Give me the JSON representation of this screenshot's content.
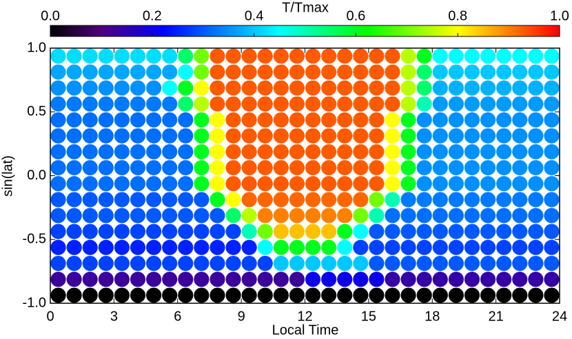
{
  "chart_data": {
    "type": "disk-grid",
    "colorbar_title": "T/Tmax",
    "xlabel": "Local Time",
    "ylabel": "sin(lat)",
    "xlim": [
      0,
      24
    ],
    "ylim": [
      -1,
      1
    ],
    "xticks": [
      0,
      3,
      6,
      9,
      12,
      15,
      18,
      21,
      24
    ],
    "yticks": [
      {
        "value": 1,
        "label": "1.0"
      },
      0.5,
      {
        "value": 0,
        "label": "0.0"
      },
      -0.5,
      {
        "value": -1,
        "label": "-1.0"
      }
    ],
    "clim": [
      0,
      1
    ],
    "cticks": [
      {
        "value": 0,
        "label": "0.0"
      },
      0.2,
      0.4,
      0.6,
      0.8,
      {
        "value": 1,
        "label": "1.0"
      }
    ],
    "colormap": [
      [
        0,
        "#000000"
      ],
      [
        0.1,
        "#50007a"
      ],
      [
        0.22,
        "#0000ff"
      ],
      [
        0.45,
        "#00ffff"
      ],
      [
        0.62,
        "#00ff00"
      ],
      [
        0.8,
        "#ffff00"
      ],
      [
        0.9,
        "#ff8000"
      ],
      [
        1,
        "#ff0000"
      ]
    ],
    "x": [
      0.375,
      1.125,
      1.875,
      2.625,
      3.375,
      4.125,
      4.875,
      5.625,
      6.375,
      7.125,
      7.875,
      8.625,
      9.375,
      10.125,
      10.875,
      11.625,
      12.375,
      13.125,
      13.875,
      14.625,
      15.375,
      16.125,
      16.875,
      17.625,
      18.375,
      19.125,
      19.875,
      20.625,
      21.375,
      22.125,
      22.875,
      23.625
    ],
    "y": [
      0.9375,
      0.8125,
      0.6875,
      0.5625,
      0.4375,
      0.3125,
      0.1875,
      0.0625,
      -0.0625,
      -0.1875,
      -0.3125,
      -0.4375,
      -0.5625,
      -0.6875,
      -0.8125,
      -0.9375
    ],
    "values": [
      [
        0.42,
        0.42,
        0.42,
        0.42,
        0.42,
        0.42,
        0.42,
        0.42,
        0.55,
        0.7,
        0.93,
        0.93,
        0.93,
        0.93,
        0.93,
        0.93,
        0.93,
        0.93,
        0.93,
        0.93,
        0.93,
        0.93,
        0.75,
        0.6,
        0.45,
        0.45,
        0.45,
        0.45,
        0.45,
        0.45,
        0.45,
        0.45
      ],
      [
        0.37,
        0.37,
        0.37,
        0.37,
        0.37,
        0.37,
        0.37,
        0.37,
        0.45,
        0.7,
        0.93,
        0.93,
        0.93,
        0.93,
        0.93,
        0.93,
        0.93,
        0.93,
        0.93,
        0.93,
        0.93,
        0.93,
        0.75,
        0.55,
        0.4,
        0.4,
        0.4,
        0.4,
        0.4,
        0.4,
        0.4,
        0.4
      ],
      [
        0.35,
        0.35,
        0.35,
        0.35,
        0.35,
        0.35,
        0.35,
        0.45,
        0.6,
        0.8,
        0.93,
        0.93,
        0.93,
        0.93,
        0.93,
        0.93,
        0.93,
        0.93,
        0.93,
        0.93,
        0.93,
        0.93,
        0.75,
        0.55,
        0.38,
        0.38,
        0.38,
        0.38,
        0.38,
        0.38,
        0.38,
        0.38
      ],
      [
        0.33,
        0.33,
        0.33,
        0.33,
        0.33,
        0.33,
        0.33,
        0.33,
        0.55,
        0.75,
        0.93,
        0.93,
        0.93,
        0.93,
        0.93,
        0.93,
        0.93,
        0.93,
        0.93,
        0.93,
        0.93,
        0.93,
        0.75,
        0.5,
        0.36,
        0.36,
        0.36,
        0.36,
        0.36,
        0.36,
        0.36,
        0.36
      ],
      [
        0.32,
        0.32,
        0.32,
        0.32,
        0.32,
        0.32,
        0.32,
        0.32,
        0.32,
        0.6,
        0.8,
        0.93,
        0.93,
        0.93,
        0.93,
        0.93,
        0.93,
        0.93,
        0.93,
        0.93,
        0.93,
        0.8,
        0.6,
        0.35,
        0.35,
        0.35,
        0.35,
        0.35,
        0.35,
        0.35,
        0.35,
        0.35
      ],
      [
        0.32,
        0.32,
        0.32,
        0.32,
        0.32,
        0.32,
        0.32,
        0.32,
        0.32,
        0.6,
        0.8,
        0.93,
        0.93,
        0.93,
        0.93,
        0.93,
        0.93,
        0.93,
        0.93,
        0.93,
        0.93,
        0.8,
        0.6,
        0.35,
        0.35,
        0.35,
        0.35,
        0.35,
        0.35,
        0.35,
        0.35,
        0.35
      ],
      [
        0.32,
        0.32,
        0.32,
        0.32,
        0.32,
        0.32,
        0.32,
        0.32,
        0.32,
        0.6,
        0.8,
        0.93,
        0.93,
        0.93,
        0.93,
        0.93,
        0.93,
        0.93,
        0.93,
        0.93,
        0.93,
        0.8,
        0.6,
        0.35,
        0.35,
        0.35,
        0.35,
        0.35,
        0.35,
        0.35,
        0.35,
        0.35
      ],
      [
        0.32,
        0.32,
        0.32,
        0.32,
        0.32,
        0.32,
        0.32,
        0.32,
        0.32,
        0.6,
        0.8,
        0.93,
        0.93,
        0.93,
        0.93,
        0.93,
        0.93,
        0.93,
        0.93,
        0.93,
        0.93,
        0.8,
        0.6,
        0.35,
        0.35,
        0.35,
        0.35,
        0.35,
        0.35,
        0.35,
        0.35,
        0.35
      ],
      [
        0.32,
        0.32,
        0.32,
        0.32,
        0.32,
        0.32,
        0.32,
        0.32,
        0.32,
        0.6,
        0.8,
        0.93,
        0.93,
        0.93,
        0.93,
        0.93,
        0.93,
        0.93,
        0.93,
        0.93,
        0.93,
        0.8,
        0.6,
        0.35,
        0.35,
        0.35,
        0.35,
        0.35,
        0.35,
        0.35,
        0.35,
        0.35
      ],
      [
        0.3,
        0.3,
        0.3,
        0.3,
        0.3,
        0.3,
        0.3,
        0.3,
        0.3,
        0.3,
        0.6,
        0.8,
        0.92,
        0.92,
        0.92,
        0.92,
        0.92,
        0.92,
        0.92,
        0.92,
        0.7,
        0.5,
        0.33,
        0.33,
        0.33,
        0.33,
        0.33,
        0.33,
        0.33,
        0.33,
        0.33,
        0.33
      ],
      [
        0.3,
        0.3,
        0.3,
        0.3,
        0.3,
        0.3,
        0.3,
        0.3,
        0.3,
        0.3,
        0.3,
        0.55,
        0.75,
        0.9,
        0.9,
        0.9,
        0.9,
        0.9,
        0.9,
        0.7,
        0.5,
        0.32,
        0.32,
        0.32,
        0.32,
        0.32,
        0.32,
        0.32,
        0.32,
        0.32,
        0.32,
        0.32
      ],
      [
        0.28,
        0.28,
        0.28,
        0.28,
        0.28,
        0.28,
        0.28,
        0.28,
        0.28,
        0.28,
        0.28,
        0.28,
        0.5,
        0.7,
        0.85,
        0.85,
        0.85,
        0.85,
        0.6,
        0.45,
        0.3,
        0.3,
        0.3,
        0.3,
        0.3,
        0.3,
        0.3,
        0.3,
        0.3,
        0.3,
        0.3,
        0.3
      ],
      [
        0.25,
        0.25,
        0.25,
        0.25,
        0.25,
        0.25,
        0.25,
        0.25,
        0.25,
        0.25,
        0.25,
        0.25,
        0.25,
        0.45,
        0.6,
        0.6,
        0.6,
        0.6,
        0.45,
        0.28,
        0.28,
        0.28,
        0.28,
        0.28,
        0.28,
        0.28,
        0.28,
        0.28,
        0.28,
        0.28,
        0.28,
        0.28
      ],
      [
        0.28,
        0.28,
        0.28,
        0.28,
        0.28,
        0.28,
        0.28,
        0.28,
        0.28,
        0.28,
        0.28,
        0.28,
        0.28,
        0.28,
        0.4,
        0.4,
        0.4,
        0.4,
        0.4,
        0.4,
        0.3,
        0.3,
        0.3,
        0.3,
        0.3,
        0.3,
        0.3,
        0.3,
        0.3,
        0.3,
        0.3,
        0.3
      ],
      [
        0.13,
        0.13,
        0.13,
        0.13,
        0.13,
        0.13,
        0.13,
        0.13,
        0.13,
        0.13,
        0.13,
        0.13,
        0.13,
        0.13,
        0.13,
        0.13,
        0.2,
        0.2,
        0.2,
        0.2,
        0.2,
        0.14,
        0.14,
        0.14,
        0.14,
        0.14,
        0.14,
        0.14,
        0.14,
        0.14,
        0.14,
        0.14
      ],
      [
        0,
        0,
        0,
        0,
        0,
        0,
        0,
        0,
        0,
        0,
        0,
        0,
        0,
        0,
        0,
        0,
        0,
        0,
        0,
        0,
        0,
        0,
        0,
        0,
        0,
        0,
        0,
        0,
        0,
        0,
        0,
        0
      ]
    ]
  }
}
